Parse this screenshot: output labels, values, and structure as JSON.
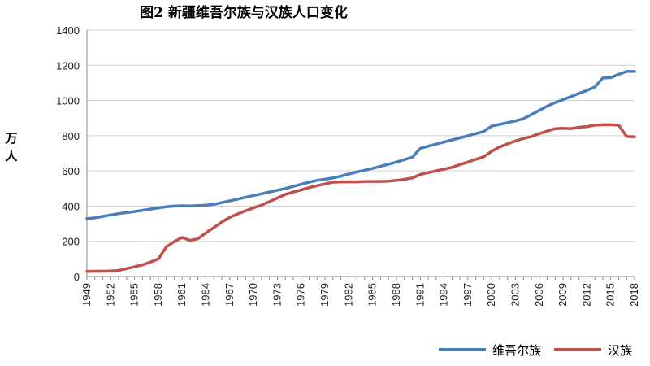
{
  "chart_data": {
    "type": "line",
    "title": "图2  新疆维吾尔族与汉族人口变化",
    "ylabel": "万人",
    "xlabel": "",
    "ylim": [
      0,
      1400
    ],
    "yticks": [
      0,
      200,
      400,
      600,
      800,
      1000,
      1200,
      1400
    ],
    "xlim": [
      1949,
      2018
    ],
    "xticks": [
      1949,
      1952,
      1955,
      1958,
      1961,
      1964,
      1967,
      1970,
      1973,
      1976,
      1979,
      1982,
      1985,
      1988,
      1991,
      1994,
      1997,
      2000,
      2003,
      2006,
      2009,
      2012,
      2015,
      2018
    ],
    "grid": "horizontal",
    "legend": "bottom-right",
    "x": [
      1949,
      1950,
      1951,
      1952,
      1953,
      1954,
      1955,
      1956,
      1957,
      1958,
      1959,
      1960,
      1961,
      1962,
      1963,
      1964,
      1965,
      1966,
      1967,
      1968,
      1969,
      1970,
      1971,
      1972,
      1973,
      1974,
      1975,
      1976,
      1977,
      1978,
      1979,
      1980,
      1981,
      1982,
      1983,
      1984,
      1985,
      1986,
      1987,
      1988,
      1989,
      1990,
      1991,
      1992,
      1993,
      1994,
      1995,
      1996,
      1997,
      1998,
      1999,
      2000,
      2001,
      2002,
      2003,
      2004,
      2005,
      2006,
      2007,
      2008,
      2009,
      2010,
      2011,
      2012,
      2013,
      2014,
      2015,
      2016,
      2017,
      2018
    ],
    "series": [
      {
        "name": "维吾尔族",
        "color": "#4a7ebb",
        "values": [
          329,
          333,
          342,
          350,
          357,
          363,
          369,
          376,
          383,
          390,
          396,
          400,
          402,
          401,
          403,
          405,
          410,
          420,
          430,
          440,
          450,
          460,
          470,
          480,
          490,
          500,
          512,
          524,
          536,
          546,
          553,
          560,
          570,
          582,
          594,
          604,
          614,
          626,
          638,
          650,
          664,
          678,
          728,
          740,
          752,
          764,
          776,
          788,
          800,
          812,
          824,
          855,
          864,
          874,
          884,
          897,
          920,
          944,
          968,
          988,
          1005,
          1022,
          1040,
          1057,
          1077,
          1128,
          1130,
          1148,
          1165,
          1165
        ]
      },
      {
        "name": "汉族",
        "color": "#c0504d",
        "values": [
          29,
          30,
          30,
          31,
          34,
          45,
          55,
          66,
          82,
          100,
          168,
          198,
          222,
          205,
          215,
          248,
          278,
          310,
          336,
          356,
          374,
          390,
          406,
          426,
          446,
          466,
          480,
          492,
          505,
          516,
          526,
          536,
          538,
          538,
          538,
          540,
          540,
          540,
          542,
          546,
          552,
          560,
          580,
          590,
          600,
          610,
          620,
          636,
          650,
          666,
          680,
          712,
          736,
          754,
          770,
          784,
          795,
          812,
          826,
          840,
          842,
          840,
          848,
          852,
          860,
          862,
          862,
          860,
          796,
          794
        ]
      }
    ]
  }
}
